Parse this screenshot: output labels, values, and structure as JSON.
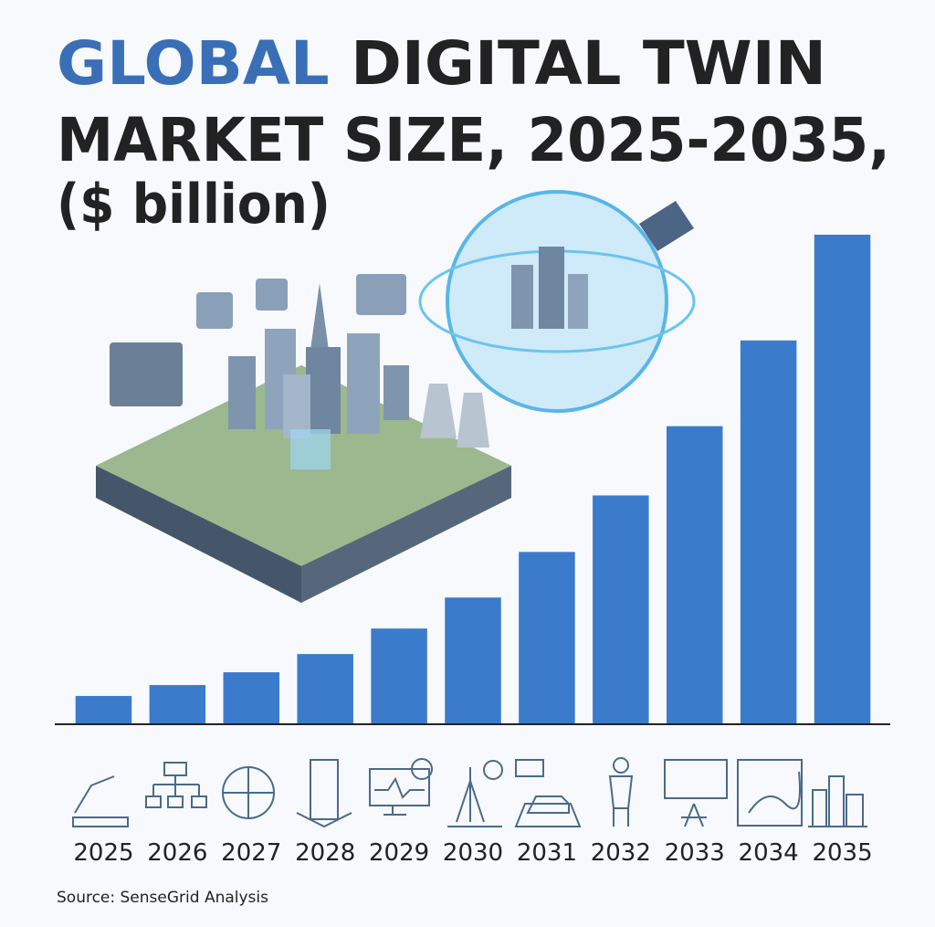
{
  "chart_data": {
    "type": "bar",
    "title_highlight": "GLOBAL",
    "title": "DIGITAL TWIN",
    "title_line2": "MARKET SIZE, 2025-2035,",
    "subtitle": "($ billion)",
    "source": "Source: SenseGrid Analysis",
    "categories": [
      "2025",
      "2026",
      "2027",
      "2028",
      "2029",
      "2030",
      "2031",
      "2032",
      "2033",
      "2034",
      "2035"
    ],
    "values": [
      15,
      21,
      28,
      38,
      52,
      69,
      94,
      125,
      163,
      210,
      268
    ],
    "color": "#3b7bcc",
    "ylim": [
      0,
      270
    ]
  }
}
